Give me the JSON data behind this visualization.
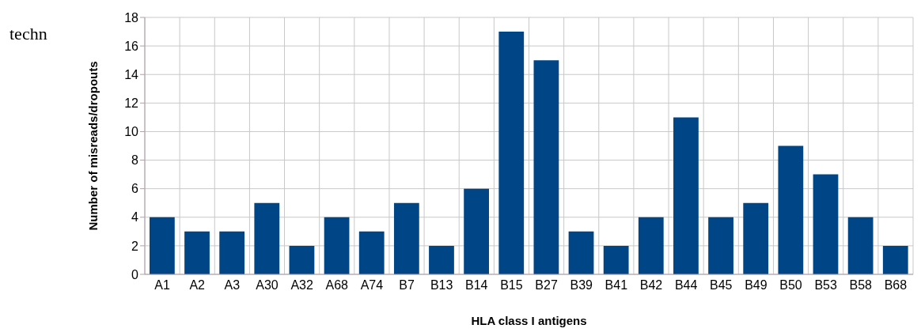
{
  "chart_data": {
    "type": "bar",
    "xlabel": "HLA class I antigens",
    "ylabel": "Number of misreads/dropouts",
    "annotations": [
      "techn"
    ],
    "categories": [
      "A1",
      "A2",
      "A3",
      "A30",
      "A32",
      "A68",
      "A74",
      "B7",
      "B13",
      "B14",
      "B15",
      "B27",
      "B39",
      "B41",
      "B42",
      "B44",
      "B45",
      "B49",
      "B50",
      "B53",
      "B58",
      "B68"
    ],
    "values": [
      4,
      3,
      3,
      5,
      2,
      4,
      3,
      5,
      2,
      6,
      17,
      15,
      3,
      2,
      4,
      11,
      4,
      5,
      9,
      7,
      4,
      2
    ],
    "color": "#004586",
    "ylim": [
      0,
      18
    ],
    "yticks": [
      0,
      2,
      4,
      6,
      8,
      10,
      12,
      14,
      16,
      18
    ],
    "grid": true
  }
}
